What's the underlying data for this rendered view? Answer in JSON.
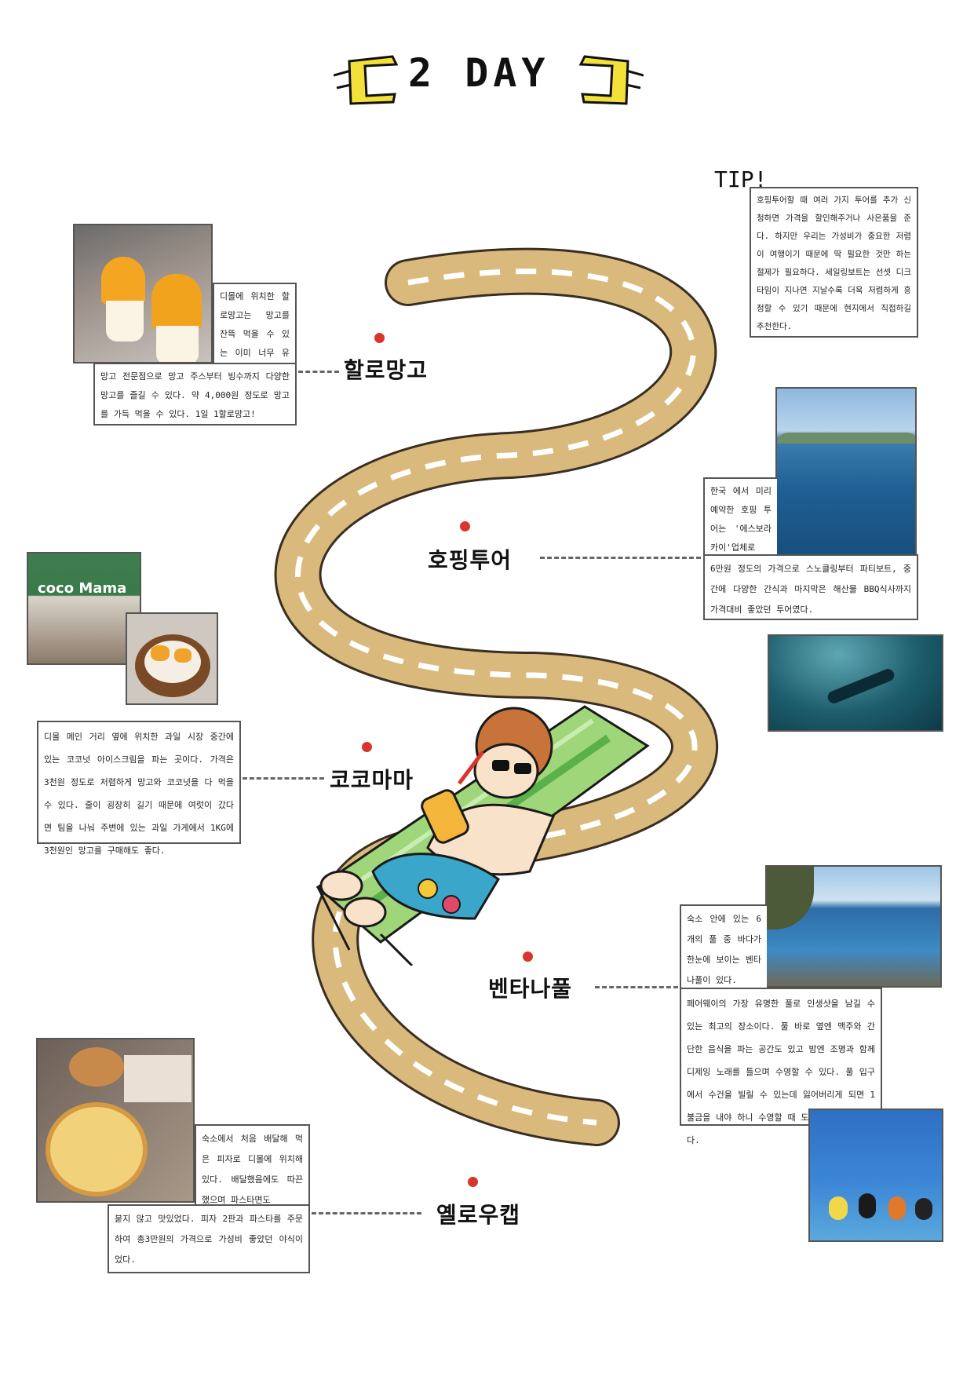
{
  "title": "2 DAY",
  "tip": {
    "label": "TIP!",
    "text": "호핑투어할 때 여러 가지 투어를 추가 신청하면 가격을 할인해주거나 사은품을 준다. 하지만 우리는 가성비가 중요한 저렴이 여행이기 때문에 딱 필요한 것만 하는 절제가 필요하다. 세일링보트는 선셋 디크타임이 지나면 지날수록 더욱 저렴하게 흥정할 수 있기 때문에 현지에서 직접하길 추천한다."
  },
  "stops": [
    {
      "name": "할로망고",
      "text_top": "디몰에 위치한 할로망고는 망고를 잔뜩 먹을 수 있는 이미 너무 유명한",
      "text_bottom": "망고 전문점으로 망고 주스부터 빙수까지 다양한 망고를 즐길 수 있다. 약 4,000원 정도로 망고를 가득 먹을 수 있다. 1일 1할로망고!"
    },
    {
      "name": "호핑투어",
      "text_top": "한국 에서 미리 예약한 호핑 투어는 '에스보라카이'업체로",
      "text_bottom": "6만원 정도의 가격으로 스노클링부터 파티보트, 중간에 다양한 간식과 마지막은 해산물 BBQ식사까지 가격대비 좋았던 투어였다."
    },
    {
      "name": "코코마마",
      "text": "디몰 메인 거리 옆에 위치한 과일 시장 중간에 있는 코코넛 아이스크림을 파는 곳이다. 가격은 3천원 정도로 저렴하게 망고와 코코넛을 다 먹을 수 있다. 줄이 굉장히 길기 때문에 여럿이 갔다면 팀을 나눠 주변에 있는 과일 가게에서 1KG에 3천원인 망고를 구매해도 좋다.",
      "sign": "coco Mama"
    },
    {
      "name": "벤타나풀",
      "text_top": "숙소 안에 있는 6개의 풀 중 바다가 한눈에 보이는 벤타나풀이 있다.",
      "text_bottom": "페어웨이의 가장 유명한 풀로 인생샷을 남길 수 있는 최고의 장소이다. 풀 바로 옆엔 맥주와 간단한 음식을 파는 공간도 있고 밤엔 조명과 함께 디제잉 노래를 틀으며 수영할 수 있다. 풀 입구에서 수건을 빌릴 수 있는데 잃어버리게 되면 1불금을 내야 하니 수영할 때 도난에 주의해야 한다."
    },
    {
      "name": "옐로우캡",
      "text_top": "숙소에서 처음 배달해 먹은 피자로 디몰에 위치해 있다. 배달했음에도 따끈했으며 파스타면도",
      "text_bottom": "붇지 않고 맛있었다. 피자 2판과 파스타를 주문하여 총3만원의 가격으로 가성비 좋았던 야식이었다."
    }
  ],
  "colors": {
    "road": "#d9b97c",
    "road_edge": "#3a2e22",
    "dot": "#d8362c",
    "accent": "#f3e03a"
  }
}
